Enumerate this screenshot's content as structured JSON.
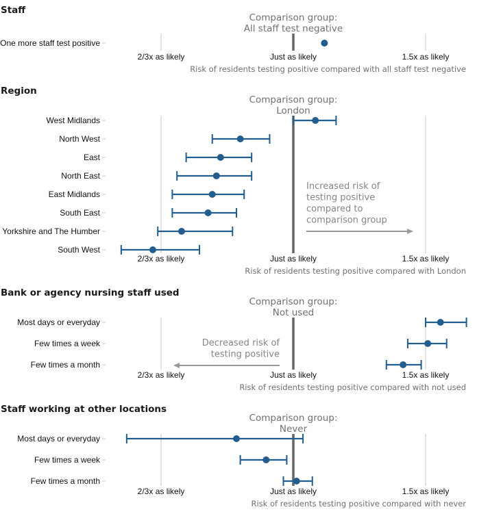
{
  "colors": {
    "series": "#215d8e",
    "reference_line": "#666666",
    "grid": "#c8c8c8",
    "annotation": "#999999"
  },
  "chart_data": [
    {
      "type": "scatter",
      "id": "staff",
      "title": "Staff",
      "comparison_label": [
        "Comparison group:",
        "All staff test negative"
      ],
      "xlabel": "Risk of residents testing positive compared with all staff test negative",
      "x_scale": "log",
      "xlim": [
        0.5,
        1.8
      ],
      "ticks": [
        {
          "value": 0.6667,
          "label": "2/3x as likely"
        },
        {
          "value": 1,
          "label": "Just as likely"
        },
        {
          "value": 1.5,
          "label": "1.5x as likely"
        }
      ],
      "categories": [
        "One more staff test positive"
      ],
      "estimate": [
        1.1
      ],
      "ci_low": [
        1.1
      ],
      "ci_high": [
        1.1
      ]
    },
    {
      "type": "scatter",
      "id": "region",
      "title": "Region",
      "comparison_label": [
        "Comparison group:",
        "London"
      ],
      "xlabel": "Risk of residents testing positive compared with London",
      "x_scale": "log",
      "xlim": [
        0.5,
        1.8
      ],
      "ticks": [
        {
          "value": 0.6667,
          "label": "2/3x as likely"
        },
        {
          "value": 1,
          "label": "Just as likely"
        },
        {
          "value": 1.5,
          "label": "1.5x as likely"
        }
      ],
      "categories": [
        "West Midlands",
        "North West",
        "East",
        "North East",
        "East Midlands",
        "South East",
        "Yorkshire and The Humber",
        "South West"
      ],
      "estimate": [
        1.07,
        0.85,
        0.8,
        0.79,
        0.78,
        0.77,
        0.71,
        0.65
      ],
      "ci_low": [
        1.0,
        0.78,
        0.72,
        0.7,
        0.69,
        0.69,
        0.66,
        0.59
      ],
      "ci_high": [
        1.14,
        0.93,
        0.88,
        0.88,
        0.86,
        0.84,
        0.83,
        0.75
      ],
      "annotation": {
        "lines": [
          "Increased risk of",
          "testing positive",
          "compared to",
          "comparison group"
        ],
        "direction": "right"
      }
    },
    {
      "type": "scatter",
      "id": "bank",
      "title": "Bank or agency nursing staff used",
      "comparison_label": [
        "Comparison group:",
        "Not used"
      ],
      "xlabel": "Risk of residents testing positive compared with not used",
      "x_scale": "log",
      "xlim": [
        0.5,
        1.8
      ],
      "ticks": [
        {
          "value": 0.6667,
          "label": "2/3x as likely"
        },
        {
          "value": 1,
          "label": "Just as likely"
        },
        {
          "value": 1.5,
          "label": "1.5x as likely"
        }
      ],
      "categories": [
        "Most days or everyday",
        "Few times a week",
        "Few times a month"
      ],
      "estimate": [
        1.57,
        1.51,
        1.4
      ],
      "ci_low": [
        1.5,
        1.42,
        1.33
      ],
      "ci_high": [
        1.7,
        1.6,
        1.48
      ],
      "annotation": {
        "lines": [
          "Decreased risk of",
          "testing positive"
        ],
        "direction": "left"
      }
    },
    {
      "type": "scatter",
      "id": "other",
      "title": "Staff working at other locations",
      "comparison_label": [
        "Comparison group:",
        "Never"
      ],
      "xlabel": "Risk of residents testing positive compared with never",
      "x_scale": "log",
      "xlim": [
        0.5,
        1.8
      ],
      "ticks": [
        {
          "value": 0.6667,
          "label": "2/3x as likely"
        },
        {
          "value": 1,
          "label": "Just as likely"
        },
        {
          "value": 1.5,
          "label": "1.5x as likely"
        }
      ],
      "categories": [
        "Most days or everyday",
        "Few times a week",
        "Few times a month"
      ],
      "estimate": [
        0.84,
        0.92,
        1.01
      ],
      "ci_low": [
        0.6,
        0.85,
        0.97
      ],
      "ci_high": [
        1.03,
        0.98,
        1.06
      ]
    }
  ]
}
